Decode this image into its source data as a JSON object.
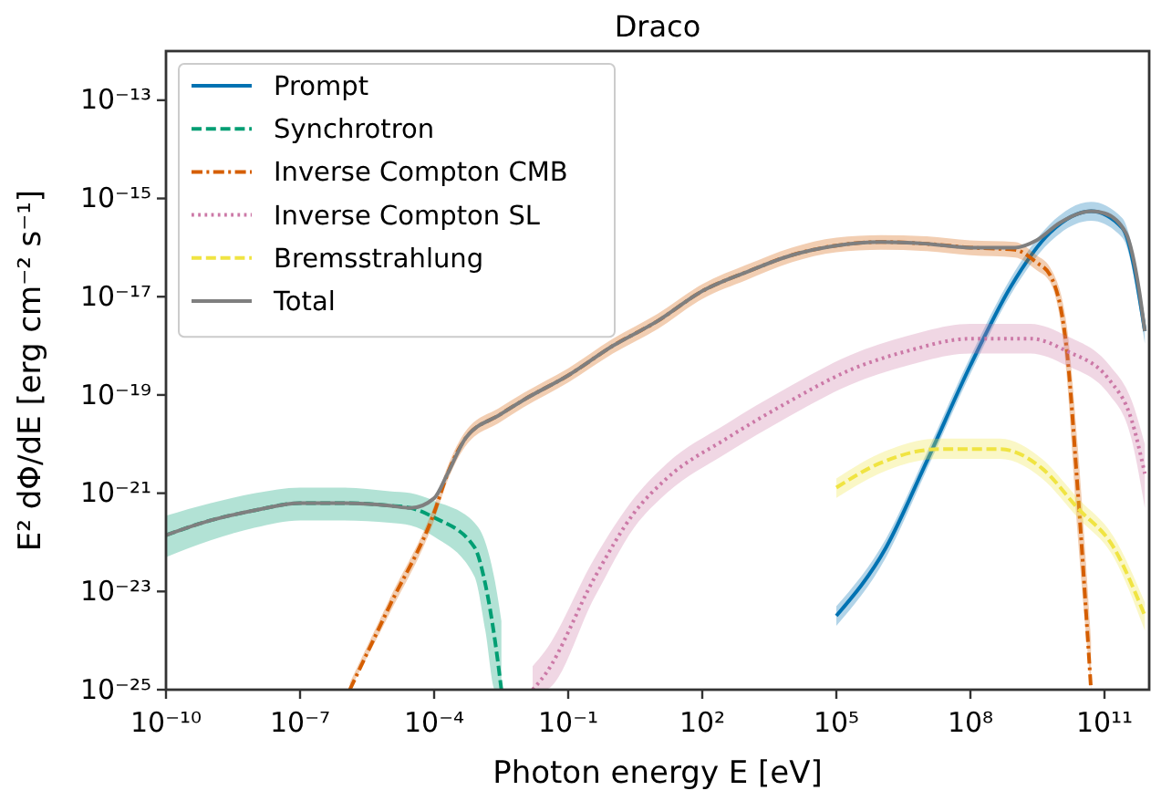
{
  "chart_data": {
    "type": "line",
    "title": "Draco",
    "xlabel": "Photon energy E [eV]",
    "ylabel": "E² dΦ/dE [erg cm⁻² s⁻¹]",
    "log": "xy",
    "legend": "top left",
    "xlim": [
      1e-10,
      1000000000000.0
    ],
    "ylim": [
      1e-25,
      1e-12
    ],
    "xticks": [
      {
        "value": 1e-10,
        "label": "10⁻¹⁰"
      },
      {
        "value": 1e-07,
        "label": "10⁻⁷"
      },
      {
        "value": 0.0001,
        "label": "10⁻⁴"
      },
      {
        "value": 0.1,
        "label": "10⁻¹"
      },
      {
        "value": 100.0,
        "label": "10²"
      },
      {
        "value": 100000.0,
        "label": "10⁵"
      },
      {
        "value": 100000000.0,
        "label": "10⁸"
      },
      {
        "value": 100000000000.0,
        "label": "10¹¹"
      }
    ],
    "yticks": [
      {
        "value": 1e-25,
        "label": "10⁻²⁵"
      },
      {
        "value": 1e-23,
        "label": "10⁻²³"
      },
      {
        "value": 1e-21,
        "label": "10⁻²¹"
      },
      {
        "value": 1e-19,
        "label": "10⁻¹⁹"
      },
      {
        "value": 1e-17,
        "label": "10⁻¹⁷"
      },
      {
        "value": 1e-15,
        "label": "10⁻¹⁵"
      },
      {
        "value": 1e-13,
        "label": "10⁻¹³"
      }
    ],
    "series": [
      {
        "name": "Prompt",
        "color": "#0072b2",
        "line_style": "solid",
        "x": [
          100000.0,
          1300000.0,
          10000000.0,
          100000000.0,
          800000000.0,
          6000000000.0,
          50000000000.0,
          250000000000.0,
          800000000000.0
        ],
        "values": [
          3.2e-24,
          7.9e-23,
          4e-21,
          4e-19,
          1.6e-17,
          2e-16,
          5.5e-16,
          2.5e-16,
          2e-18
        ],
        "upper": [
          5e-24,
          1.2e-22,
          6e-21,
          6e-19,
          2.4e-17,
          3e-16,
          8.5e-16,
          4e-16,
          3.5e-18
        ],
        "lower": [
          2e-24,
          5e-23,
          2.7e-21,
          2.7e-19,
          1.1e-17,
          1.3e-16,
          3.5e-16,
          1.6e-16,
          1.1e-18
        ]
      },
      {
        "name": "Synchrotron",
        "color": "#009e73",
        "line_style": "dashed",
        "x": [
          1e-10,
          1e-09,
          1e-08,
          1e-07,
          1e-06,
          1e-05,
          3e-05,
          0.0001,
          0.0008,
          0.0014,
          0.0023,
          0.0032
        ],
        "values": [
          1.4e-22,
          2.8e-22,
          4.5e-22,
          6.3e-22,
          6.3e-22,
          5.6e-22,
          5e-22,
          3.2e-22,
          7.9e-23,
          1.4e-23,
          1e-24,
          1e-25
        ],
        "upper": [
          3.5e-22,
          6.3e-22,
          1e-21,
          1.3e-21,
          1.3e-21,
          1.1e-21,
          1e-21,
          7e-22,
          2.5e-22,
          1e-22,
          1.6e-23,
          2.5e-24
        ],
        "lower": [
          5e-23,
          1.1e-22,
          2e-22,
          2.8e-22,
          2.8e-22,
          2.5e-22,
          2.2e-22,
          1.3e-22,
          2e-23,
          1.6e-24,
          1e-25,
          1e-25
        ]
      },
      {
        "name": "Inverse Compton CMB",
        "color": "#d55e00",
        "line_style": "dashdot",
        "x": [
          1.3e-06,
          1e-05,
          0.0001,
          0.0002,
          0.0005,
          0.003,
          0.01,
          0.1,
          1,
          10,
          100,
          1000.0,
          10000.0,
          100000.0,
          1000000.0,
          10000000.0,
          100000000.0,
          1000000000.0,
          3000000000.0,
          6000000000.0,
          14000000000.0,
          25000000000.0,
          50000000000.0
        ],
        "values": [
          1e-25,
          5e-24,
          4e-22,
          2.5e-21,
          1.3e-20,
          4e-20,
          7.9e-20,
          2.5e-19,
          1e-18,
          3.2e-18,
          1.3e-17,
          3.2e-17,
          7e-17,
          1.1e-16,
          1.3e-16,
          1.2e-16,
          1e-16,
          9e-17,
          5e-17,
          2.8e-17,
          1e-18,
          1.3e-21,
          1e-25
        ],
        "upper": [
          1.4e-25,
          7e-24,
          5.6e-22,
          3.5e-21,
          1.8e-20,
          5.6e-20,
          1.1e-19,
          3.5e-19,
          1.4e-18,
          4.5e-18,
          1.8e-17,
          4.5e-17,
          1e-16,
          1.6e-16,
          1.8e-16,
          1.7e-16,
          1.4e-16,
          1.3e-16,
          7e-17,
          4e-17,
          3e-18,
          1e-20,
          1e-24
        ],
        "lower": [
          1e-25,
          3.5e-24,
          2.8e-22,
          1.8e-21,
          9e-21,
          2.8e-20,
          5.6e-20,
          1.8e-19,
          7e-19,
          2.2e-18,
          9e-18,
          2.2e-17,
          5e-17,
          8e-17,
          9e-17,
          8.5e-17,
          7e-17,
          6.3e-17,
          3.5e-17,
          2e-17,
          3e-19,
          1.5e-22,
          1e-25
        ]
      },
      {
        "name": "Inverse Compton SL",
        "color": "#cc79a7",
        "line_style": "dotted",
        "x": [
          0.016,
          0.03,
          0.4,
          3,
          16,
          350,
          8000.0,
          200000.0,
          4000000.0,
          100000000.0,
          2200000000.0,
          14000000000.0,
          130000000000.0,
          400000000000.0,
          800000000000.0
        ],
        "values": [
          1e-25,
          2e-25,
          2e-23,
          4e-22,
          2e-21,
          1.3e-20,
          7e-20,
          3.2e-19,
          7.9e-19,
          1.4e-18,
          1.4e-18,
          7.9e-19,
          2e-19,
          3.2e-20,
          2.5e-21
        ],
        "upper": [
          3e-25,
          6e-25,
          5e-23,
          8e-22,
          4e-21,
          2.6e-20,
          1.4e-19,
          6.4e-19,
          1.6e-18,
          2.8e-18,
          2.8e-18,
          1.6e-18,
          4e-19,
          8e-20,
          1e-20
        ],
        "lower": [
          1e-25,
          1e-25,
          8e-24,
          2e-22,
          1e-21,
          6.5e-21,
          3.5e-20,
          1.6e-19,
          4e-19,
          7e-19,
          7e-19,
          4e-19,
          1e-19,
          1.3e-20,
          5e-22
        ]
      },
      {
        "name": "Bremsstrahlung",
        "color": "#f0e442",
        "line_style": "dashed",
        "x": [
          100000.0,
          900000.0,
          20000000.0,
          460000000.0,
          4000000000.0,
          25000000000.0,
          160000000000.0,
          800000000000.0
        ],
        "values": [
          1.3e-21,
          4e-21,
          7.9e-21,
          7.9e-21,
          3.2e-21,
          5e-22,
          7.9e-23,
          3.2e-24
        ],
        "upper": [
          2e-21,
          6.3e-21,
          1.3e-20,
          1.3e-20,
          5e-21,
          8e-22,
          1.3e-22,
          6e-24
        ],
        "lower": [
          8e-22,
          2.5e-21,
          5e-21,
          5e-21,
          2e-21,
          3.2e-22,
          5e-23,
          1.6e-24
        ]
      },
      {
        "name": "Total",
        "color": "#7f7f7f",
        "line_style": "solid",
        "x": [
          1e-10,
          1e-09,
          1e-08,
          1e-07,
          1e-06,
          1e-05,
          3e-05,
          0.0001,
          0.0002,
          0.0005,
          0.003,
          0.01,
          0.1,
          1,
          10,
          100,
          1000.0,
          10000.0,
          100000.0,
          1000000.0,
          10000000.0,
          100000000.0,
          1000000000.0,
          3000000000.0,
          10000000000.0,
          50000000000.0,
          100000000000.0,
          300000000000.0,
          600000000000.0,
          800000000000.0
        ],
        "values": [
          1.4e-22,
          2.8e-22,
          4.5e-22,
          6.3e-22,
          6.3e-22,
          5.6e-22,
          5e-22,
          7.9e-22,
          2.5e-21,
          1.3e-20,
          4e-20,
          7.9e-20,
          2.5e-19,
          1e-18,
          3.2e-18,
          1.3e-17,
          3.2e-17,
          7e-17,
          1.1e-16,
          1.3e-16,
          1.2e-16,
          1e-16,
          1e-16,
          1.4e-16,
          3.2e-16,
          5.5e-16,
          5e-16,
          2e-16,
          1.3e-17,
          2e-18
        ]
      }
    ]
  }
}
